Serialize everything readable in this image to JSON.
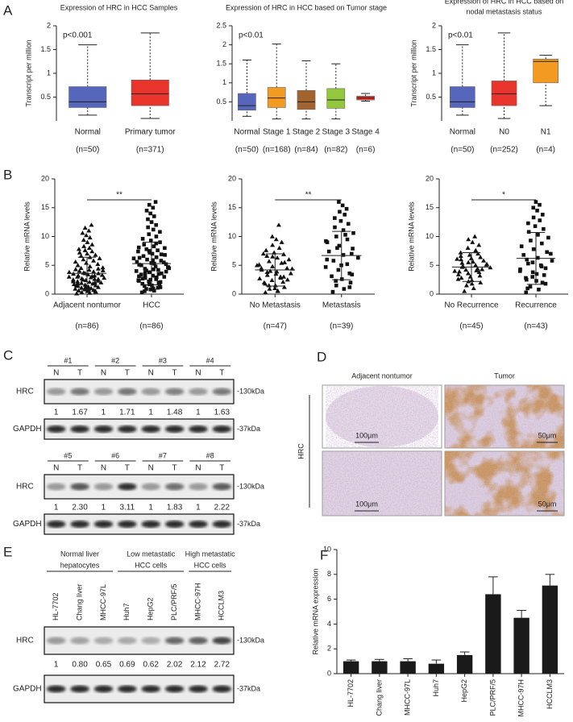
{
  "panel_a": {
    "letter": "A",
    "charts": [
      {
        "type": "box",
        "title": "Expression of HRC in HCC Samples",
        "y_label": "Transcript per million",
        "annotation": "p<0.001",
        "ylim": [
          0,
          2
        ],
        "yticks": [
          0.5,
          1,
          1.5,
          2
        ],
        "categories": [
          "Normal",
          "Primary tumor"
        ],
        "counts": [
          "(n=50)",
          "(n=371)"
        ],
        "colors": [
          "#5566bb",
          "#e8342a"
        ],
        "min": [
          0.12,
          0.05
        ],
        "q1": [
          0.28,
          0.32
        ],
        "median": [
          0.4,
          0.57
        ],
        "q3": [
          0.72,
          0.86
        ],
        "max": [
          1.6,
          1.85
        ]
      },
      {
        "type": "box",
        "title": "Expression of HRC in HCC based on Tumor stage",
        "annotation": "p<0.01",
        "ylim": [
          0,
          2.5
        ],
        "yticks": [
          0.5,
          1,
          1.5,
          2,
          2.5
        ],
        "categories": [
          "Normal",
          "Stage 1",
          "Stage 2",
          "Stage 3",
          "Stage 4"
        ],
        "counts": [
          "(n=50)",
          "(n=168)",
          "(n=84)",
          "(n=82)",
          "(n=6)"
        ],
        "colors": [
          "#5566bb",
          "#f39a23",
          "#a3632e",
          "#93c83e",
          "#e8342a"
        ],
        "min": [
          0.12,
          0.05,
          0.05,
          0.05,
          0.52
        ],
        "q1": [
          0.28,
          0.35,
          0.3,
          0.33,
          0.55
        ],
        "median": [
          0.4,
          0.6,
          0.5,
          0.55,
          0.6
        ],
        "q3": [
          0.72,
          0.88,
          0.8,
          0.85,
          0.65
        ],
        "max": [
          1.6,
          2.02,
          1.58,
          1.5,
          0.72
        ]
      },
      {
        "type": "box",
        "title": "Expression of HRC in HCC based on",
        "subtitle": "nodal metastasis status",
        "y_label": "Transcript per million",
        "annotation": "p<0.01",
        "ylim": [
          0,
          2
        ],
        "yticks": [
          0.5,
          1,
          1.5,
          2
        ],
        "categories": [
          "Normal",
          "N0",
          "N1"
        ],
        "counts": [
          "(n=50)",
          "(n=252)",
          "(n=4)"
        ],
        "colors": [
          "#5566bb",
          "#e8342a",
          "#f39a23"
        ],
        "min": [
          0.12,
          0.05,
          0.32
        ],
        "q1": [
          0.28,
          0.32,
          0.8
        ],
        "median": [
          0.4,
          0.57,
          1.25
        ],
        "q3": [
          0.72,
          0.84,
          1.3
        ],
        "max": [
          1.6,
          1.85,
          1.38
        ]
      }
    ]
  },
  "panel_b": {
    "letter": "B",
    "charts": [
      {
        "type": "dot",
        "y_label": "Relative mRNA levels",
        "annotation": "**",
        "ylim": [
          0,
          20
        ],
        "yticks": [
          0,
          5,
          10,
          15,
          20
        ],
        "categories": [
          "Adjacent nontumor",
          "HCC"
        ],
        "counts": [
          "(n=86)",
          "(n=86)"
        ],
        "groups": [
          {
            "marker": "triangle",
            "mean": 3.6,
            "sd": 2.8,
            "values": [
              0.1,
              0.2,
              0.3,
              0.4,
              0.5,
              0.6,
              0.7,
              0.8,
              0.9,
              1.0,
              1.1,
              1.2,
              1.3,
              1.4,
              1.5,
              1.6,
              1.7,
              1.8,
              1.9,
              2.0,
              2.1,
              2.2,
              2.3,
              2.4,
              2.5,
              2.6,
              2.7,
              2.8,
              2.9,
              3.0,
              0.5,
              1.0,
              1.5,
              2.0,
              2.5,
              3.0,
              3.1,
              3.2,
              3.3,
              3.4,
              3.5,
              3.6,
              3.7,
              3.8,
              3.9,
              4.0,
              4.1,
              4.2,
              4.3,
              4.4,
              1.2,
              2.2,
              3.2,
              4.5,
              4.6,
              4.8,
              5.0,
              5.2,
              5.4,
              5.6,
              5.8,
              6.0,
              6.2,
              6.4,
              6.6,
              6.8,
              7.0,
              7.2,
              7.4,
              7.6,
              7.8,
              8.0,
              8.3,
              8.6,
              9.0,
              9.4,
              9.8,
              10.2,
              10.6,
              11.0,
              11.5,
              12.0,
              0.8,
              1.8,
              2.6,
              3.6
            ]
          },
          {
            "marker": "square",
            "mean": 5.3,
            "sd": 3.7,
            "values": [
              0.3,
              0.6,
              0.9,
              1.2,
              1.5,
              1.8,
              2.0,
              2.2,
              2.4,
              2.6,
              2.8,
              3.0,
              3.2,
              3.4,
              3.6,
              3.8,
              4.0,
              4.2,
              4.4,
              4.6,
              1.0,
              1.4,
              2.1,
              2.5,
              3.1,
              3.5,
              4.1,
              4.5,
              4.8,
              5.0,
              5.2,
              5.4,
              5.6,
              5.8,
              6.0,
              6.2,
              6.4,
              6.6,
              6.8,
              7.0,
              0.5,
              1.1,
              1.7,
              2.3,
              2.9,
              3.3,
              3.9,
              4.3,
              5.1,
              5.5,
              7.2,
              7.4,
              7.6,
              7.8,
              8.0,
              8.3,
              8.6,
              9.0,
              9.3,
              9.6,
              10.0,
              10.4,
              10.8,
              11.2,
              11.6,
              12.0,
              12.5,
              13.0,
              13.5,
              14.0,
              14.5,
              15.0,
              15.5,
              16.0,
              5.9,
              6.3,
              6.9,
              7.5,
              8.1,
              8.8,
              3.7,
              4.7,
              5.3,
              2.7,
              1.6,
              0.8
            ]
          }
        ]
      },
      {
        "type": "dot",
        "y_label": "Relative mRNA levels",
        "annotation": "**",
        "ylim": [
          0,
          20
        ],
        "yticks": [
          0,
          5,
          10,
          15,
          20
        ],
        "categories": [
          "No Metastasis",
          "Metastasis"
        ],
        "counts": [
          "(n=47)",
          "(n=39)"
        ],
        "groups": [
          {
            "marker": "triangle",
            "mean": 4.2,
            "sd": 2.8,
            "values": [
              0.3,
              0.6,
              0.9,
              1.2,
              1.5,
              1.8,
              2.1,
              2.4,
              2.7,
              3.0,
              3.3,
              3.6,
              3.9,
              4.2,
              4.5,
              4.8,
              5.1,
              5.4,
              5.7,
              6.0,
              6.3,
              6.6,
              6.9,
              7.2,
              7.6,
              8.0,
              8.5,
              9.0,
              9.5,
              10.0,
              12.0,
              1.0,
              2.0,
              3.0,
              4.0,
              5.0,
              0.5,
              1.5,
              2.5,
              3.5,
              4.5,
              5.5,
              6.5,
              7.0,
              2.8,
              3.8,
              4.4
            ]
          },
          {
            "marker": "square",
            "mean": 6.7,
            "sd": 4.2,
            "values": [
              0.4,
              0.9,
              1.5,
              2.0,
              2.6,
              3.1,
              3.6,
              4.2,
              4.7,
              5.2,
              5.8,
              6.3,
              6.8,
              7.4,
              7.9,
              8.4,
              9.0,
              9.5,
              10.0,
              10.6,
              11.1,
              11.6,
              12.2,
              12.7,
              13.2,
              13.8,
              14.3,
              14.8,
              15.4,
              16.0,
              3.4,
              5.0,
              6.0,
              7.0,
              8.0,
              9.2,
              10.3,
              2.3,
              1.2
            ]
          }
        ]
      },
      {
        "type": "dot",
        "y_label": "Relative mRNA levels",
        "annotation": "*",
        "ylim": [
          0,
          20
        ],
        "yticks": [
          0,
          5,
          10,
          15,
          20
        ],
        "categories": [
          "No Recurrence",
          "Recurrence"
        ],
        "counts": [
          "(n=45)",
          "(n=43)"
        ],
        "groups": [
          {
            "marker": "triangle",
            "mean": 4.7,
            "sd": 2.5,
            "values": [
              0.5,
              1.0,
              1.5,
              2.0,
              2.4,
              2.8,
              3.2,
              3.6,
              4.0,
              4.4,
              4.8,
              5.2,
              5.6,
              6.0,
              6.4,
              6.8,
              7.2,
              7.6,
              8.0,
              8.5,
              9.0,
              9.5,
              10.0,
              3.0,
              3.4,
              3.8,
              4.2,
              4.6,
              5.0,
              5.4,
              5.8,
              6.2,
              6.6,
              7.0,
              2.2,
              2.6,
              4.1,
              4.7,
              5.1,
              1.8,
              3.9,
              4.3,
              5.5,
              6.1,
              7.4
            ]
          },
          {
            "marker": "square",
            "mean": 6.2,
            "sd": 4.5,
            "values": [
              0.3,
              0.8,
              1.3,
              1.8,
              2.3,
              2.8,
              3.3,
              3.8,
              4.3,
              4.8,
              5.3,
              5.8,
              6.3,
              6.8,
              7.3,
              7.8,
              8.3,
              8.8,
              9.3,
              9.8,
              10.3,
              10.8,
              11.3,
              11.8,
              12.3,
              12.8,
              13.3,
              13.8,
              14.5,
              15.0,
              15.5,
              16.0,
              1.0,
              2.0,
              3.0,
              4.0,
              5.0,
              6.0,
              7.0,
              3.5,
              2.5,
              4.5,
              5.5
            ]
          }
        ]
      }
    ]
  },
  "panel_c": {
    "letter": "C",
    "lane_labels": [
      "N",
      "T"
    ],
    "bands": [
      "HRC",
      "GAPDH"
    ],
    "sizes": [
      "-130kDa",
      "-37kDa"
    ],
    "rows": [
      {
        "samples": [
          "#1",
          "#2",
          "#3",
          "#4"
        ],
        "ratios": [
          "1",
          "1.67",
          "1",
          "1.71",
          "1",
          "1.48",
          "1",
          "1.63"
        ]
      },
      {
        "samples": [
          "#5",
          "#6",
          "#7",
          "#8"
        ],
        "ratios": [
          "1",
          "2.30",
          "1",
          "3.11",
          "1",
          "1.83",
          "1",
          "2.22"
        ]
      }
    ]
  },
  "panel_d": {
    "letter": "D",
    "columns": [
      "Adjacent nontumor",
      "Tumor"
    ],
    "row_label": "HRC",
    "scale_bars": [
      "100μm",
      "50μm",
      "100μm",
      "50μm"
    ]
  },
  "panel_e": {
    "letter": "E",
    "groups": [
      [
        "Normal liver",
        "hepatocytes"
      ],
      [
        "Low metastatic",
        "HCC cells"
      ],
      [
        "High metastatic",
        "HCC cells"
      ]
    ],
    "lanes": [
      "HL-7702",
      "Chang liver",
      "MHCC-97L",
      "Huh7",
      "HepG2",
      "PLC/PRF/5",
      "MHCC-97H",
      "HCCLM3"
    ],
    "ratios": [
      "1",
      "0.80",
      "0.65",
      "0.69",
      "0.62",
      "2.02",
      "2.12",
      "2.72"
    ],
    "bands": [
      "HRC",
      "GAPDH"
    ],
    "sizes": [
      "-130kDa",
      "-37kDa"
    ]
  },
  "panel_f": {
    "letter": "F",
    "chart": {
      "type": "bar",
      "y_label": "Relative mRNA expression",
      "color": "#1a1a1a",
      "ylim": [
        0,
        10
      ],
      "yticks": [
        0,
        2,
        4,
        6,
        8,
        10
      ],
      "categories": [
        "HL-7702",
        "Chang liver",
        "MHCC-97L",
        "Huh7",
        "HepG2",
        "PLC/PRF/5",
        "MHCC-97H",
        "HCCLM3"
      ],
      "values": [
        1.0,
        1.0,
        1.0,
        0.8,
        1.5,
        6.4,
        4.5,
        7.1
      ],
      "errors": [
        0.1,
        0.15,
        0.2,
        0.3,
        0.25,
        1.4,
        0.6,
        0.9
      ]
    }
  }
}
